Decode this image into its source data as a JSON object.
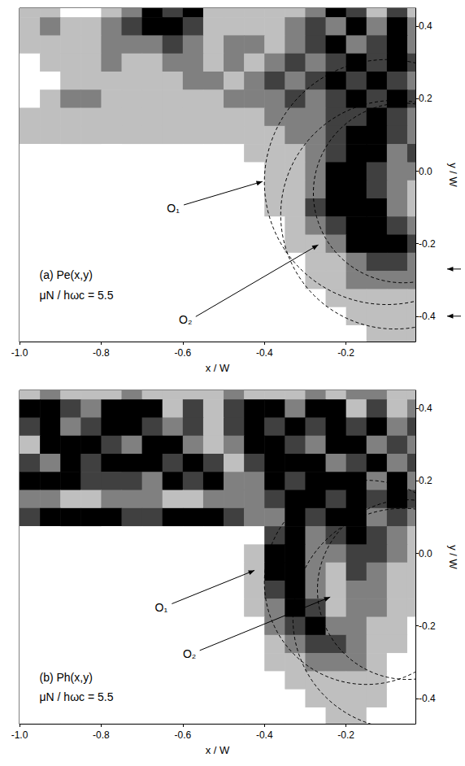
{
  "chart_data": [
    {
      "type": "heatmap",
      "title": "(a) Pe(x,y)",
      "subtitle": "μN / hωc = 5.5",
      "x_label": "x / W",
      "y_label": "y / W",
      "xlim": [
        -1.0,
        -0.03
      ],
      "ylim": [
        -0.47,
        0.45
      ],
      "xticks": [
        {
          "value": -1.0,
          "label": "-1.0"
        },
        -0.8,
        -0.6,
        -0.4,
        -0.2
      ],
      "yticks": [
        -0.4,
        -0.2,
        {
          "value": 0,
          "label": "0.0"
        },
        0.2,
        0.4
      ],
      "level_range": [
        0,
        4
      ],
      "cell_x": [
        -0.975,
        -0.925,
        -0.875,
        -0.825,
        -0.775,
        -0.725,
        -0.675,
        -0.625,
        -0.575,
        -0.525,
        -0.475,
        -0.425,
        -0.375,
        -0.325,
        -0.275,
        -0.225,
        -0.175,
        -0.125,
        -0.075,
        -0.025
      ],
      "cell_y": [
        0.45,
        0.4,
        0.35,
        0.3,
        0.25,
        0.2,
        0.15,
        0.1,
        0.05,
        0.0,
        -0.05,
        -0.1,
        -0.15,
        -0.2,
        -0.25,
        -0.3,
        -0.35,
        -0.4,
        -0.45
      ],
      "cells": [
        [
          1,
          1,
          0,
          0,
          1,
          2,
          4,
          3,
          4,
          1,
          1,
          1,
          1,
          1,
          2,
          4,
          3,
          1,
          3,
          1
        ],
        [
          1,
          2,
          1,
          1,
          2,
          3,
          4,
          4,
          3,
          1,
          1,
          1,
          1,
          2,
          3,
          2,
          4,
          2,
          4,
          2
        ],
        [
          1,
          1,
          1,
          1,
          2,
          2,
          2,
          3,
          2,
          1,
          2,
          2,
          1,
          2,
          3,
          4,
          2,
          3,
          4,
          2
        ],
        [
          0,
          1,
          1,
          1,
          2,
          1,
          1,
          2,
          2,
          1,
          2,
          1,
          2,
          3,
          2,
          3,
          4,
          3,
          4,
          3
        ],
        [
          0,
          0,
          1,
          1,
          1,
          1,
          1,
          1,
          2,
          2,
          1,
          2,
          3,
          2,
          3,
          4,
          3,
          4,
          3,
          2
        ],
        [
          0,
          1,
          2,
          2,
          1,
          1,
          1,
          1,
          1,
          1,
          2,
          2,
          2,
          3,
          2,
          3,
          4,
          3,
          4,
          3
        ],
        [
          1,
          1,
          1,
          1,
          1,
          1,
          1,
          1,
          1,
          1,
          1,
          1,
          2,
          2,
          2,
          3,
          3,
          4,
          3,
          2
        ],
        [
          1,
          1,
          1,
          1,
          1,
          1,
          1,
          1,
          1,
          1,
          1,
          1,
          1,
          2,
          2,
          3,
          4,
          4,
          3,
          2
        ],
        [
          0,
          0,
          0,
          0,
          0,
          0,
          0,
          0,
          0,
          0,
          0,
          1,
          1,
          1,
          2,
          3,
          4,
          4,
          2,
          3
        ],
        [
          0,
          0,
          0,
          0,
          0,
          0,
          0,
          0,
          0,
          0,
          0,
          0,
          1,
          1,
          2,
          4,
          4,
          3,
          2,
          2
        ],
        [
          0,
          0,
          0,
          0,
          0,
          0,
          0,
          0,
          0,
          0,
          0,
          0,
          1,
          1,
          2,
          4,
          4,
          3,
          2,
          1
        ],
        [
          0,
          0,
          0,
          0,
          0,
          0,
          0,
          0,
          0,
          0,
          0,
          0,
          1,
          1,
          3,
          4,
          4,
          4,
          2,
          1
        ],
        [
          0,
          0,
          0,
          0,
          0,
          0,
          0,
          0,
          0,
          0,
          0,
          0,
          0,
          1,
          2,
          3,
          4,
          4,
          3,
          2
        ],
        [
          0,
          0,
          0,
          0,
          0,
          0,
          0,
          0,
          0,
          0,
          0,
          0,
          0,
          1,
          1,
          2,
          4,
          4,
          4,
          3
        ],
        [
          0,
          0,
          0,
          0,
          0,
          0,
          0,
          0,
          0,
          0,
          0,
          0,
          0,
          0,
          1,
          1,
          2,
          3,
          3,
          2
        ],
        [
          0,
          0,
          0,
          0,
          0,
          0,
          0,
          0,
          0,
          0,
          0,
          0,
          0,
          0,
          1,
          1,
          2,
          2,
          2,
          2
        ],
        [
          0,
          0,
          0,
          0,
          0,
          0,
          0,
          0,
          0,
          0,
          0,
          0,
          0,
          0,
          0,
          1,
          1,
          1,
          1,
          1
        ],
        [
          0,
          0,
          0,
          0,
          0,
          0,
          0,
          0,
          0,
          0,
          0,
          0,
          0,
          0,
          0,
          0,
          1,
          1,
          1,
          1
        ],
        [
          0,
          0,
          0,
          0,
          0,
          0,
          0,
          0,
          0,
          0,
          0,
          0,
          0,
          0,
          0,
          0,
          0,
          1,
          1,
          1
        ]
      ],
      "circles": [
        {
          "x": -0.1,
          "y": -0.03,
          "r": 0.3
        },
        {
          "x": -0.06,
          "y": -0.06,
          "r": 0.22
        },
        {
          "x": -0.08,
          "y": -0.12,
          "r": 0.28
        }
      ],
      "annotations": [
        "O₁",
        "O₂"
      ],
      "edge_arrows_y": [
        -0.27,
        -0.4
      ]
    },
    {
      "type": "heatmap",
      "title": "(b) Ph(x,y)",
      "subtitle": "μN / hωc = 5.5",
      "x_label": "x / W",
      "y_label": "y / W",
      "xlim": [
        -1.0,
        -0.03
      ],
      "ylim": [
        -0.47,
        0.45
      ],
      "xticks": [
        {
          "value": -1.0,
          "label": "-1.0"
        },
        -0.8,
        -0.6,
        -0.4,
        -0.2
      ],
      "yticks": [
        -0.4,
        -0.2,
        {
          "value": 0,
          "label": "0.0"
        },
        0.2,
        0.4
      ],
      "level_range": [
        0,
        4
      ],
      "cell_x": [
        -0.975,
        -0.925,
        -0.875,
        -0.825,
        -0.775,
        -0.725,
        -0.675,
        -0.625,
        -0.575,
        -0.525,
        -0.475,
        -0.425,
        -0.375,
        -0.325,
        -0.275,
        -0.225,
        -0.175,
        -0.125,
        -0.075,
        -0.025
      ],
      "cell_y": [
        0.45,
        0.4,
        0.35,
        0.3,
        0.25,
        0.2,
        0.15,
        0.1,
        0.05,
        0.0,
        -0.05,
        -0.1,
        -0.15,
        -0.2,
        -0.25,
        -0.3,
        -0.35,
        -0.4,
        -0.45
      ],
      "cells": [
        [
          1,
          2,
          1,
          1,
          1,
          2,
          1,
          1,
          1,
          1,
          2,
          1,
          1,
          1,
          2,
          1,
          2,
          2,
          1,
          1
        ],
        [
          4,
          4,
          3,
          2,
          4,
          4,
          4,
          1,
          3,
          1,
          3,
          4,
          4,
          2,
          4,
          4,
          1,
          3,
          1,
          2
        ],
        [
          3,
          4,
          2,
          3,
          4,
          4,
          3,
          2,
          3,
          1,
          3,
          4,
          3,
          4,
          3,
          4,
          3,
          4,
          2,
          3
        ],
        [
          1,
          4,
          4,
          4,
          3,
          2,
          4,
          4,
          2,
          1,
          2,
          4,
          4,
          3,
          2,
          4,
          4,
          2,
          3,
          2
        ],
        [
          3,
          2,
          4,
          3,
          4,
          4,
          4,
          3,
          4,
          3,
          1,
          3,
          4,
          4,
          4,
          2,
          3,
          4,
          2,
          3
        ],
        [
          4,
          4,
          4,
          3,
          3,
          3,
          2,
          4,
          3,
          4,
          2,
          2,
          4,
          3,
          4,
          4,
          4,
          2,
          4,
          2
        ],
        [
          2,
          2,
          1,
          1,
          2,
          2,
          2,
          1,
          1,
          2,
          2,
          2,
          3,
          4,
          4,
          3,
          4,
          3,
          4,
          3
        ],
        [
          3,
          4,
          4,
          4,
          4,
          3,
          3,
          4,
          4,
          4,
          3,
          2,
          2,
          4,
          3,
          4,
          4,
          2,
          3,
          2
        ],
        [
          0,
          0,
          0,
          0,
          0,
          0,
          0,
          0,
          0,
          0,
          0,
          0,
          3,
          4,
          2,
          3,
          4,
          3,
          2,
          1
        ],
        [
          0,
          0,
          0,
          0,
          0,
          0,
          0,
          0,
          0,
          0,
          0,
          1,
          4,
          4,
          2,
          2,
          3,
          3,
          2,
          1
        ],
        [
          0,
          0,
          0,
          0,
          0,
          0,
          0,
          0,
          0,
          0,
          0,
          1,
          4,
          4,
          2,
          1,
          3,
          2,
          1,
          1
        ],
        [
          0,
          0,
          0,
          0,
          0,
          0,
          0,
          0,
          0,
          0,
          0,
          1,
          3,
          4,
          2,
          1,
          2,
          2,
          1,
          1
        ],
        [
          0,
          0,
          0,
          0,
          0,
          0,
          0,
          0,
          0,
          0,
          0,
          1,
          2,
          4,
          3,
          1,
          2,
          2,
          1,
          1
        ],
        [
          0,
          0,
          0,
          0,
          0,
          0,
          0,
          0,
          0,
          0,
          0,
          0,
          2,
          3,
          4,
          2,
          2,
          1,
          1,
          0
        ],
        [
          0,
          0,
          0,
          0,
          0,
          0,
          0,
          0,
          0,
          0,
          0,
          0,
          1,
          2,
          3,
          3,
          2,
          1,
          1,
          0
        ],
        [
          0,
          0,
          0,
          0,
          0,
          0,
          0,
          0,
          0,
          0,
          0,
          0,
          1,
          1,
          2,
          2,
          2,
          1,
          0,
          0
        ],
        [
          0,
          0,
          0,
          0,
          0,
          0,
          0,
          0,
          0,
          0,
          0,
          0,
          0,
          1,
          1,
          1,
          1,
          1,
          0,
          0
        ],
        [
          0,
          0,
          0,
          0,
          0,
          0,
          0,
          0,
          0,
          0,
          0,
          0,
          0,
          0,
          1,
          1,
          1,
          1,
          0,
          0
        ],
        [
          0,
          0,
          0,
          0,
          0,
          0,
          0,
          0,
          0,
          0,
          0,
          0,
          0,
          0,
          0,
          1,
          1,
          0,
          0,
          0
        ]
      ],
      "circles": [
        {
          "x": -0.15,
          "y": -0.08,
          "r": 0.25
        },
        {
          "x": -0.05,
          "y": -0.1,
          "r": 0.22
        },
        {
          "x": -0.06,
          "y": -0.18,
          "r": 0.27
        }
      ],
      "annotations": [
        "O₁",
        "O₂"
      ]
    }
  ]
}
